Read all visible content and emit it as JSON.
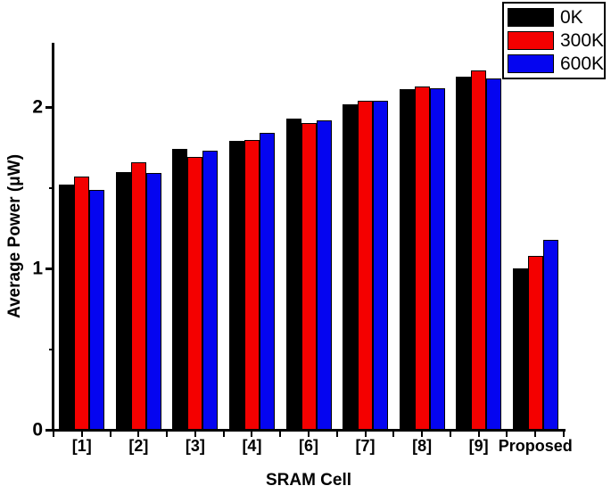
{
  "chart_data": {
    "type": "bar",
    "title": "",
    "xlabel": "SRAM Cell",
    "ylabel": "Average Power (μW)",
    "categories": [
      "[1]",
      "[2]",
      "[3]",
      "[4]",
      "[6]",
      "[7]",
      "[8]",
      "[9]",
      "Proposed"
    ],
    "series": [
      {
        "name": "0K",
        "color": "#000000",
        "values": [
          1.52,
          1.6,
          1.74,
          1.79,
          1.93,
          2.02,
          2.11,
          2.19,
          1.0
        ]
      },
      {
        "name": "300K",
        "color": "#f40000",
        "values": [
          1.57,
          1.66,
          1.69,
          1.8,
          1.9,
          2.04,
          2.13,
          2.23,
          1.08
        ]
      },
      {
        "name": "600K",
        "color": "#0505f0",
        "values": [
          1.49,
          1.59,
          1.73,
          1.84,
          1.92,
          2.04,
          2.12,
          2.18,
          1.18
        ]
      }
    ],
    "ylim": [
      0,
      2.4
    ],
    "yticks_major": [
      0,
      1,
      2
    ],
    "yticks_minor": [
      0.5,
      1.5
    ],
    "grid": false,
    "legend_position": "top-right",
    "bar_edge_color": "#000000",
    "background": "#ffffff"
  }
}
